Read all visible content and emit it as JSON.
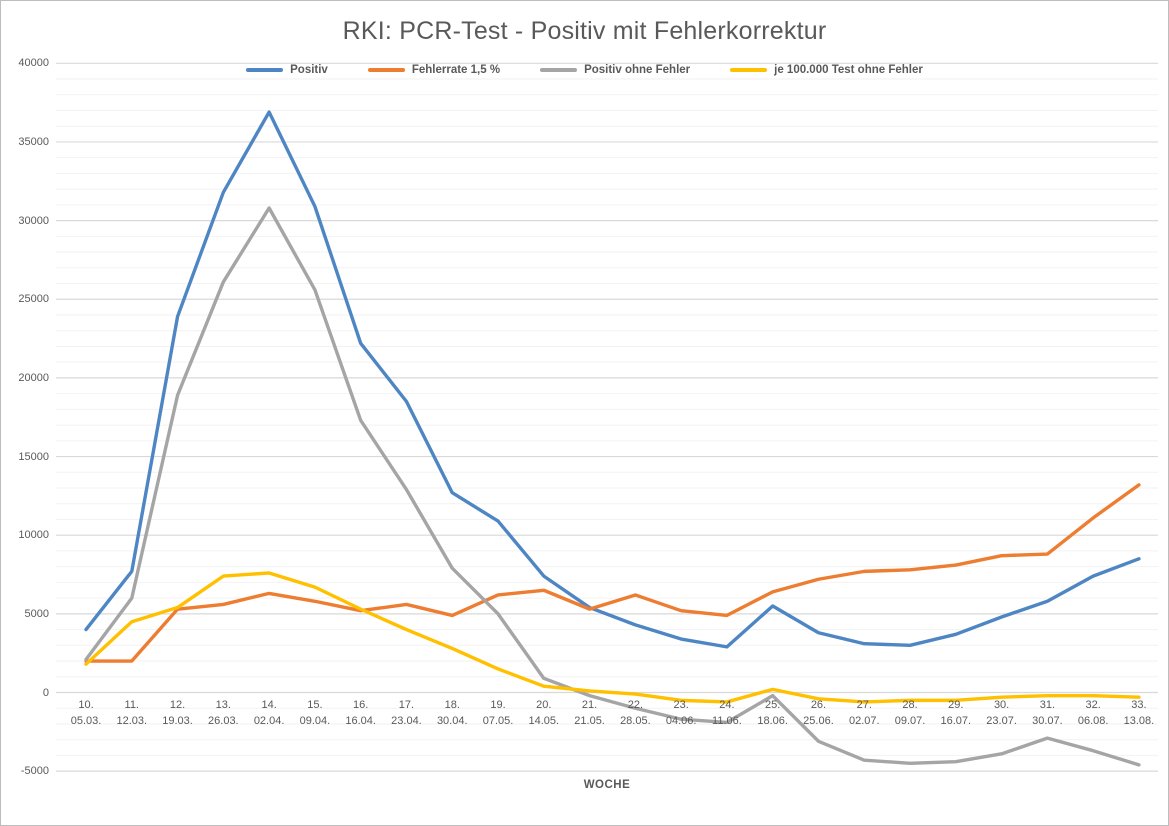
{
  "chart_data": {
    "type": "line",
    "title": "RKI: PCR-Test - Positiv mit Fehlerkorrektur",
    "xlabel": "WOCHE",
    "ylim": [
      -5000,
      40000
    ],
    "y_major_unit": 5000,
    "y_minor_unit": 1000,
    "grid": "major+minor horizontal",
    "legend_position": "top",
    "categories_week": [
      "10.",
      "11.",
      "12.",
      "13.",
      "14.",
      "15.",
      "16.",
      "17.",
      "18.",
      "19.",
      "20.",
      "21.",
      "22.",
      "23.",
      "24.",
      "25.",
      "26.",
      "27.",
      "28.",
      "29.",
      "30.",
      "31.",
      "32.",
      "33."
    ],
    "categories_date": [
      "05.03.",
      "12.03.",
      "19.03.",
      "26.03.",
      "02.04.",
      "09.04.",
      "16.04.",
      "23.04.",
      "30.04.",
      "07.05.",
      "14.05.",
      "21.05.",
      "28.05.",
      "04.06.",
      "11.06.",
      "18.06.",
      "25.06.",
      "02.07.",
      "09.07.",
      "16.07.",
      "23.07.",
      "30.07.",
      "06.08.",
      "13.08."
    ],
    "series": [
      {
        "name": "Positiv",
        "color": "#4e86c4",
        "values": [
          4000,
          7700,
          23900,
          31800,
          36900,
          30900,
          22200,
          18500,
          12700,
          10900,
          7400,
          5400,
          4300,
          3400,
          2900,
          5500,
          3800,
          3100,
          3000,
          3700,
          4800,
          5800,
          7400,
          8500
        ]
      },
      {
        "name": "Fehlerrate 1,5 %",
        "color": "#ed7d31",
        "values": [
          2000,
          2000,
          5300,
          5600,
          6300,
          5800,
          5200,
          5600,
          4900,
          6200,
          6500,
          5300,
          6200,
          5200,
          4900,
          6400,
          7200,
          7700,
          7800,
          8100,
          8700,
          8800,
          11100,
          13200
        ]
      },
      {
        "name": "Positiv ohne Fehler",
        "color": "#a5a5a5",
        "values": [
          2100,
          6000,
          18900,
          26100,
          30800,
          25600,
          17300,
          12900,
          7900,
          5000,
          900,
          -200,
          -1000,
          -1700,
          -1900,
          -200,
          -3100,
          -4300,
          -4500,
          -4400,
          -3900,
          -2900,
          -3700,
          -4600
        ]
      },
      {
        "name": "je 100.000 Test ohne Fehler",
        "color": "#ffc000",
        "values": [
          1800,
          4500,
          5400,
          7400,
          7600,
          6700,
          5300,
          4000,
          2800,
          1500,
          400,
          100,
          -100,
          -500,
          -600,
          200,
          -400,
          -600,
          -500,
          -500,
          -300,
          -200,
          -200,
          -300
        ]
      }
    ],
    "colors": {
      "text": "#595959",
      "grid_major": "#d9d9d9",
      "grid_minor": "#f2f2f2"
    }
  }
}
